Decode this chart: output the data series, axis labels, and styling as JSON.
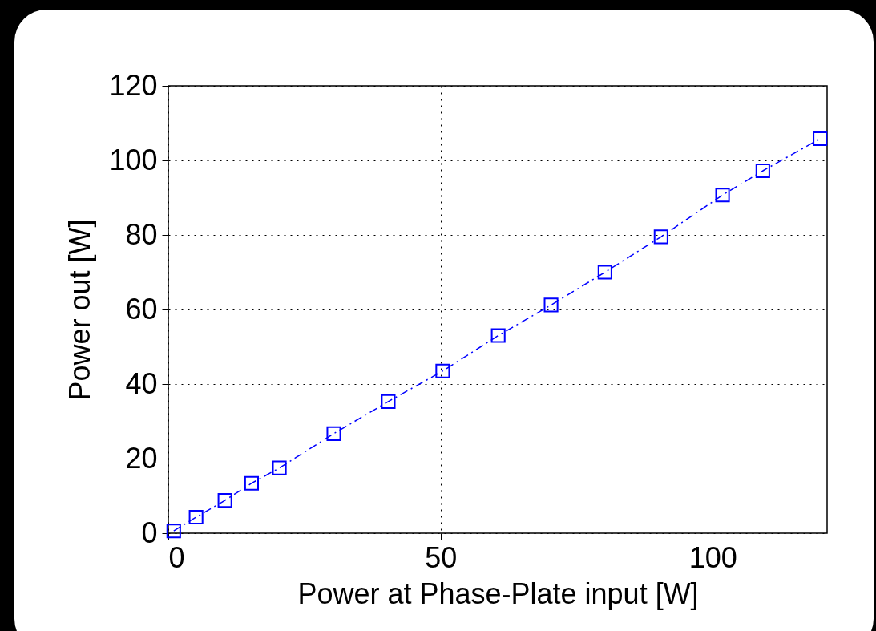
{
  "chart_data": {
    "type": "line",
    "xlabel": "Power at Phase-Plate input [W]",
    "ylabel": "Power out [W]",
    "x": [
      1.0,
      5.1,
      10.4,
      15.3,
      20.4,
      30.4,
      40.4,
      50.4,
      60.6,
      70.3,
      80.2,
      90.5,
      101.8,
      109.2,
      119.7
    ],
    "values": [
      0.6,
      4.3,
      8.8,
      13.4,
      17.5,
      26.7,
      35.3,
      43.5,
      53.0,
      61.2,
      70.0,
      79.5,
      90.7,
      97.2,
      105.8
    ],
    "color": "#0000ff",
    "xlim": [
      0,
      121
    ],
    "ylim": [
      0,
      120
    ],
    "xticks": [
      0,
      50,
      100
    ],
    "yticks": [
      0,
      20,
      40,
      60,
      80,
      100,
      120
    ],
    "grid": true,
    "marker": "square",
    "line_style": "dashdot"
  }
}
